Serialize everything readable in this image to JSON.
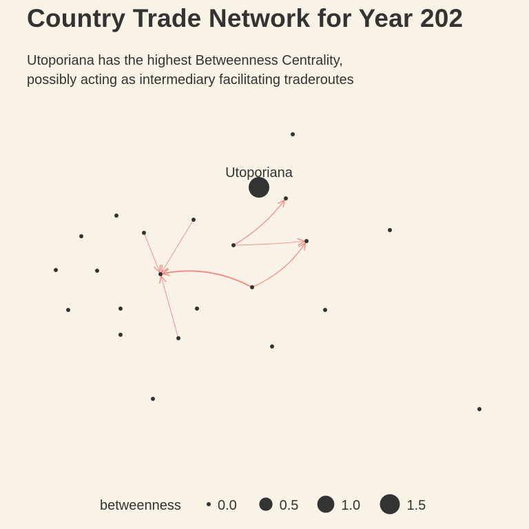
{
  "title": "Country Trade Network for Year 202",
  "subtitle": {
    "line1": "Utoporiana has the highest Betweenness Centrality,",
    "line2": "possibly acting as intermediary facilitating traderoutes"
  },
  "colors": {
    "background": "#f8f2e7",
    "node": "#333333",
    "edge": "#f28e86",
    "text": "#333333"
  },
  "chart_data": {
    "type": "network",
    "size_variable": "betweenness",
    "nodes": [
      {
        "id": "Utoporiana",
        "label": "Utoporiana",
        "betweenness": 1.0
      },
      {
        "id": "n1",
        "betweenness": 0
      },
      {
        "id": "n2",
        "betweenness": 0
      },
      {
        "id": "n3",
        "betweenness": 0
      },
      {
        "id": "n4",
        "betweenness": 0
      },
      {
        "id": "n5",
        "betweenness": 0
      },
      {
        "id": "n6",
        "betweenness": 0
      },
      {
        "id": "n7",
        "betweenness": 0
      },
      {
        "id": "n8",
        "betweenness": 0
      },
      {
        "id": "n9",
        "betweenness": 0
      },
      {
        "id": "n10",
        "betweenness": 0
      },
      {
        "id": "n11",
        "betweenness": 0
      },
      {
        "id": "n12",
        "betweenness": 0
      },
      {
        "id": "n13",
        "betweenness": 0
      },
      {
        "id": "n14",
        "betweenness": 0
      },
      {
        "id": "n15",
        "betweenness": 0
      },
      {
        "id": "n16",
        "betweenness": 0
      },
      {
        "id": "n17",
        "betweenness": 0
      },
      {
        "id": "n18",
        "betweenness": 0
      },
      {
        "id": "n19",
        "betweenness": 0
      },
      {
        "id": "n20",
        "betweenness": 0
      },
      {
        "id": "n21",
        "betweenness": 0
      },
      {
        "id": "n22",
        "betweenness": 0
      }
    ],
    "edges": [
      {
        "from": "n10",
        "to": "n14",
        "weight": 2.0
      },
      {
        "from": "n10",
        "to": "n11",
        "weight": 1.0
      },
      {
        "from": "n8",
        "to": "n3",
        "weight": 1.0
      },
      {
        "from": "n8",
        "to": "n11",
        "weight": 0.5
      },
      {
        "from": "n6",
        "to": "n14",
        "weight": 0.5
      },
      {
        "from": "n4",
        "to": "n14",
        "weight": 0.5
      },
      {
        "from": "n17",
        "to": "n14",
        "weight": 0.5
      }
    ],
    "legend": {
      "title": "betweenness",
      "position": "bottom",
      "items": [
        {
          "label": "0.0",
          "value": 0.0
        },
        {
          "label": "0.5",
          "value": 0.5
        },
        {
          "label": "1.0",
          "value": 1.0
        },
        {
          "label": "1.5",
          "value": 1.5
        }
      ]
    }
  }
}
